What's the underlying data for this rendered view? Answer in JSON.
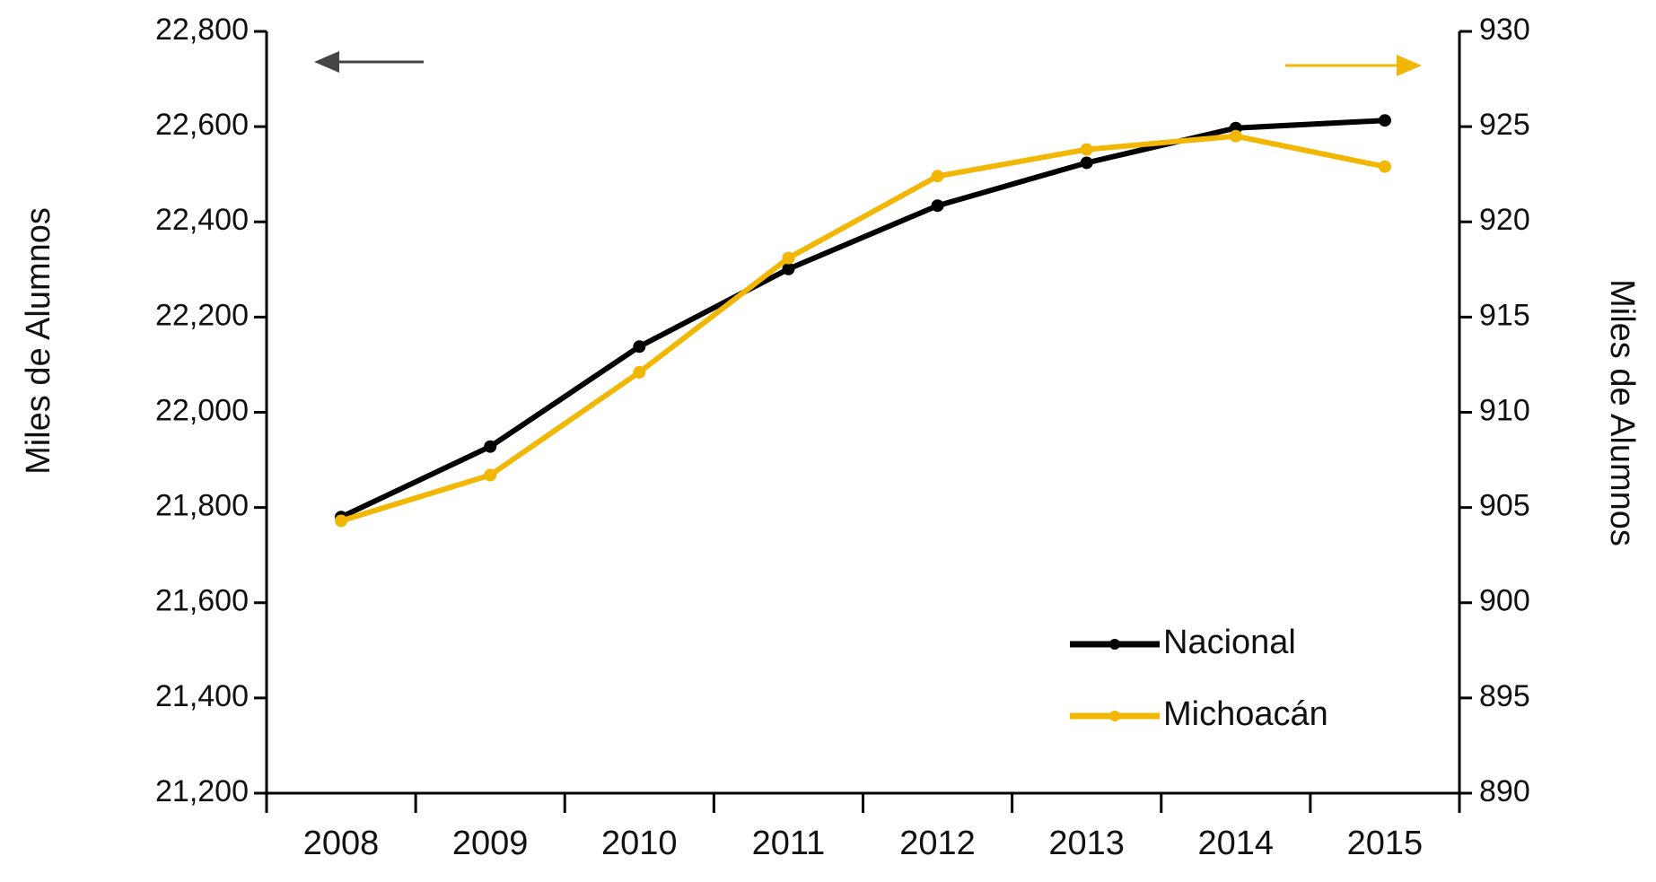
{
  "chart_data": {
    "type": "line",
    "categories": [
      "2008",
      "2009",
      "2010",
      "2011",
      "2012",
      "2013",
      "2014",
      "2015"
    ],
    "ylabel": "Miles de Alumnos",
    "y2label": "Miles de Alumnos",
    "ylim": [
      21200,
      22800
    ],
    "yticks": [
      {
        "value": 21200,
        "label": "21,200"
      },
      {
        "value": 21400,
        "label": "21,400"
      },
      {
        "value": 21600,
        "label": "21,600"
      },
      {
        "value": 21800,
        "label": "21,800"
      },
      {
        "value": 22000,
        "label": "22,000"
      },
      {
        "value": 22200,
        "label": "22,200"
      },
      {
        "value": 22400,
        "label": "22,400"
      },
      {
        "value": 22600,
        "label": "22,600"
      },
      {
        "value": 22800,
        "label": "22,800"
      }
    ],
    "y2lim": [
      890,
      930
    ],
    "y2ticks": [
      890,
      895,
      900,
      905,
      910,
      915,
      920,
      925,
      930
    ],
    "legend": "lower right",
    "series": [
      {
        "name": "Nacional",
        "color": "#000000",
        "values": [
          21780,
          21928,
          22138,
          22301,
          22434,
          22524,
          22597,
          22613
        ]
      },
      {
        "name": "Michoacán",
        "color": "#f2b705",
        "axis": "y2",
        "values": [
          904.3,
          906.7,
          912.1,
          918.1,
          922.4,
          923.8,
          924.5,
          922.9
        ]
      }
    ]
  }
}
